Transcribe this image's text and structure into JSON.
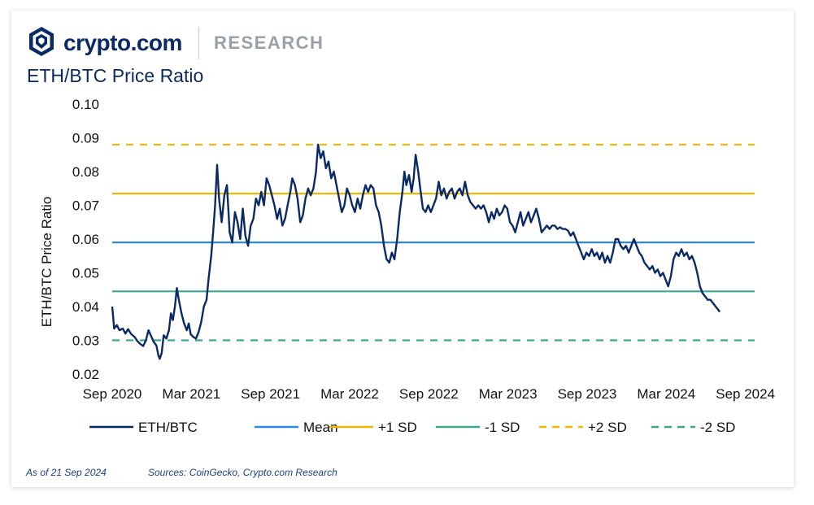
{
  "brand": {
    "name": "crypto.com",
    "section": "RESEARCH",
    "logo": "crypto-com-lion-shield-icon"
  },
  "chart_data": {
    "type": "line",
    "title": "ETH/BTC Price Ratio",
    "ylabel": "ETH/BTC Price Ratio",
    "xlabel": "",
    "ylim": [
      0.02,
      0.1
    ],
    "yticks": [
      "0.02",
      "0.03",
      "0.04",
      "0.05",
      "0.06",
      "0.07",
      "0.08",
      "0.09",
      "0.10"
    ],
    "xlim": [
      0,
      48.7
    ],
    "xticks": [
      {
        "label": "Sep 2020",
        "pos": 0
      },
      {
        "label": "Mar 2021",
        "pos": 6
      },
      {
        "label": "Sep 2021",
        "pos": 12
      },
      {
        "label": "Mar 2022",
        "pos": 18
      },
      {
        "label": "Sep 2022",
        "pos": 24
      },
      {
        "label": "Mar 2023",
        "pos": 30
      },
      {
        "label": "Sep 2023",
        "pos": 36
      },
      {
        "label": "Mar 2024",
        "pos": 42
      },
      {
        "label": "Sep 2024",
        "pos": 48
      }
    ],
    "grid": false,
    "legend_position": "bottom",
    "series": [
      {
        "name": "ETH/BTC",
        "color": "#0a2a66",
        "style": "solid",
        "points": [
          [
            0,
            0.04
          ],
          [
            0.15,
            0.0335
          ],
          [
            0.35,
            0.0345
          ],
          [
            0.55,
            0.033
          ],
          [
            0.8,
            0.0335
          ],
          [
            1.0,
            0.032
          ],
          [
            1.2,
            0.0333
          ],
          [
            1.45,
            0.0318
          ],
          [
            1.7,
            0.031
          ],
          [
            1.9,
            0.0298
          ],
          [
            2.1,
            0.029
          ],
          [
            2.35,
            0.0283
          ],
          [
            2.55,
            0.03
          ],
          [
            2.75,
            0.033
          ],
          [
            2.95,
            0.0312
          ],
          [
            3.15,
            0.0295
          ],
          [
            3.35,
            0.0285
          ],
          [
            3.5,
            0.0255
          ],
          [
            3.6,
            0.0245
          ],
          [
            3.75,
            0.0262
          ],
          [
            3.9,
            0.0315
          ],
          [
            4.1,
            0.0305
          ],
          [
            4.3,
            0.033
          ],
          [
            4.45,
            0.038
          ],
          [
            4.6,
            0.036
          ],
          [
            4.75,
            0.04
          ],
          [
            4.9,
            0.0455
          ],
          [
            5.05,
            0.042
          ],
          [
            5.25,
            0.038
          ],
          [
            5.45,
            0.035
          ],
          [
            5.65,
            0.033
          ],
          [
            5.8,
            0.035
          ],
          [
            5.95,
            0.0318
          ],
          [
            6.15,
            0.031
          ],
          [
            6.35,
            0.0305
          ],
          [
            6.55,
            0.0325
          ],
          [
            6.75,
            0.0355
          ],
          [
            6.95,
            0.04
          ],
          [
            7.15,
            0.042
          ],
          [
            7.3,
            0.048
          ],
          [
            7.5,
            0.055
          ],
          [
            7.65,
            0.062
          ],
          [
            7.8,
            0.07
          ],
          [
            7.95,
            0.082
          ],
          [
            8.1,
            0.072
          ],
          [
            8.3,
            0.065
          ],
          [
            8.5,
            0.073
          ],
          [
            8.7,
            0.076
          ],
          [
            8.9,
            0.062
          ],
          [
            9.1,
            0.059
          ],
          [
            9.3,
            0.068
          ],
          [
            9.5,
            0.065
          ],
          [
            9.7,
            0.06
          ],
          [
            9.9,
            0.069
          ],
          [
            10.1,
            0.061
          ],
          [
            10.3,
            0.058
          ],
          [
            10.5,
            0.064
          ],
          [
            10.7,
            0.066
          ],
          [
            10.9,
            0.072
          ],
          [
            11.1,
            0.07
          ],
          [
            11.3,
            0.074
          ],
          [
            11.5,
            0.07
          ],
          [
            11.7,
            0.078
          ],
          [
            11.9,
            0.076
          ],
          [
            12.1,
            0.073
          ],
          [
            12.3,
            0.07
          ],
          [
            12.5,
            0.066
          ],
          [
            12.7,
            0.069
          ],
          [
            12.9,
            0.064
          ],
          [
            13.1,
            0.066
          ],
          [
            13.3,
            0.07
          ],
          [
            13.5,
            0.074
          ],
          [
            13.65,
            0.078
          ],
          [
            13.85,
            0.076
          ],
          [
            14.05,
            0.072
          ],
          [
            14.25,
            0.065
          ],
          [
            14.45,
            0.067
          ],
          [
            14.65,
            0.072
          ],
          [
            14.85,
            0.075
          ],
          [
            15.05,
            0.073
          ],
          [
            15.25,
            0.075
          ],
          [
            15.45,
            0.08
          ],
          [
            15.6,
            0.088
          ],
          [
            15.8,
            0.084
          ],
          [
            16.0,
            0.086
          ],
          [
            16.2,
            0.081
          ],
          [
            16.4,
            0.083
          ],
          [
            16.6,
            0.078
          ],
          [
            16.8,
            0.08
          ],
          [
            17.0,
            0.076
          ],
          [
            17.2,
            0.072
          ],
          [
            17.4,
            0.068
          ],
          [
            17.6,
            0.07
          ],
          [
            17.8,
            0.075
          ],
          [
            18.0,
            0.073
          ],
          [
            18.2,
            0.07
          ],
          [
            18.4,
            0.068
          ],
          [
            18.6,
            0.072
          ],
          [
            18.8,
            0.069
          ],
          [
            19.0,
            0.073
          ],
          [
            19.2,
            0.076
          ],
          [
            19.4,
            0.074
          ],
          [
            19.6,
            0.076
          ],
          [
            19.8,
            0.075
          ],
          [
            20.0,
            0.07
          ],
          [
            20.2,
            0.068
          ],
          [
            20.4,
            0.064
          ],
          [
            20.6,
            0.058
          ],
          [
            20.8,
            0.054
          ],
          [
            21.0,
            0.053
          ],
          [
            21.2,
            0.056
          ],
          [
            21.4,
            0.054
          ],
          [
            21.6,
            0.06
          ],
          [
            21.8,
            0.068
          ],
          [
            22.0,
            0.074
          ],
          [
            22.15,
            0.08
          ],
          [
            22.3,
            0.076
          ],
          [
            22.5,
            0.079
          ],
          [
            22.7,
            0.074
          ],
          [
            22.85,
            0.078
          ],
          [
            23.0,
            0.085
          ],
          [
            23.2,
            0.08
          ],
          [
            23.35,
            0.075
          ],
          [
            23.55,
            0.069
          ],
          [
            23.75,
            0.068
          ],
          [
            23.95,
            0.07
          ],
          [
            24.15,
            0.068
          ],
          [
            24.35,
            0.07
          ],
          [
            24.55,
            0.072
          ],
          [
            24.75,
            0.077
          ],
          [
            24.95,
            0.073
          ],
          [
            25.15,
            0.075
          ],
          [
            25.35,
            0.072
          ],
          [
            25.55,
            0.074
          ],
          [
            25.75,
            0.075
          ],
          [
            25.95,
            0.072
          ],
          [
            26.15,
            0.074
          ],
          [
            26.35,
            0.075
          ],
          [
            26.55,
            0.073
          ],
          [
            26.75,
            0.077
          ],
          [
            26.95,
            0.073
          ],
          [
            27.15,
            0.071
          ],
          [
            27.35,
            0.07
          ],
          [
            27.55,
            0.069
          ],
          [
            27.75,
            0.07
          ],
          [
            27.95,
            0.069
          ],
          [
            28.15,
            0.07
          ],
          [
            28.35,
            0.068
          ],
          [
            28.55,
            0.065
          ],
          [
            28.75,
            0.068
          ],
          [
            28.95,
            0.066
          ],
          [
            29.15,
            0.069
          ],
          [
            29.35,
            0.067
          ],
          [
            29.55,
            0.068
          ],
          [
            29.75,
            0.07
          ],
          [
            29.95,
            0.069
          ],
          [
            30.15,
            0.065
          ],
          [
            30.35,
            0.064
          ],
          [
            30.55,
            0.062
          ],
          [
            30.75,
            0.065
          ],
          [
            30.95,
            0.068
          ],
          [
            31.15,
            0.064
          ],
          [
            31.35,
            0.066
          ],
          [
            31.55,
            0.068
          ],
          [
            31.75,
            0.065
          ],
          [
            31.95,
            0.067
          ],
          [
            32.15,
            0.069
          ],
          [
            32.35,
            0.066
          ],
          [
            32.55,
            0.062
          ],
          [
            32.75,
            0.063
          ],
          [
            32.95,
            0.064
          ],
          [
            33.15,
            0.063
          ],
          [
            33.35,
            0.064
          ],
          [
            33.55,
            0.064
          ],
          [
            33.75,
            0.063
          ],
          [
            33.95,
            0.0635
          ],
          [
            34.15,
            0.063
          ],
          [
            34.35,
            0.063
          ],
          [
            34.55,
            0.0625
          ],
          [
            34.75,
            0.061
          ],
          [
            34.95,
            0.062
          ],
          [
            35.15,
            0.06
          ],
          [
            35.35,
            0.058
          ],
          [
            35.55,
            0.056
          ],
          [
            35.75,
            0.054
          ],
          [
            35.95,
            0.056
          ],
          [
            36.15,
            0.055
          ],
          [
            36.35,
            0.057
          ],
          [
            36.55,
            0.055
          ],
          [
            36.75,
            0.056
          ],
          [
            36.95,
            0.054
          ],
          [
            37.15,
            0.056
          ],
          [
            37.35,
            0.053
          ],
          [
            37.55,
            0.055
          ],
          [
            37.75,
            0.053
          ],
          [
            37.95,
            0.056
          ],
          [
            38.15,
            0.06
          ],
          [
            38.35,
            0.06
          ],
          [
            38.55,
            0.058
          ],
          [
            38.75,
            0.057
          ],
          [
            38.95,
            0.058
          ],
          [
            39.15,
            0.056
          ],
          [
            39.35,
            0.058
          ],
          [
            39.55,
            0.06
          ],
          [
            39.75,
            0.058
          ],
          [
            39.95,
            0.056
          ],
          [
            40.15,
            0.055
          ],
          [
            40.35,
            0.053
          ],
          [
            40.55,
            0.052
          ],
          [
            40.75,
            0.051
          ],
          [
            40.95,
            0.052
          ],
          [
            41.15,
            0.05
          ],
          [
            41.35,
            0.051
          ],
          [
            41.55,
            0.049
          ],
          [
            41.75,
            0.05
          ],
          [
            41.95,
            0.048
          ],
          [
            42.15,
            0.046
          ],
          [
            42.35,
            0.049
          ],
          [
            42.55,
            0.054
          ],
          [
            42.75,
            0.056
          ],
          [
            42.95,
            0.055
          ],
          [
            43.15,
            0.057
          ],
          [
            43.35,
            0.055
          ],
          [
            43.55,
            0.056
          ],
          [
            43.75,
            0.054
          ],
          [
            43.95,
            0.055
          ],
          [
            44.15,
            0.053
          ],
          [
            44.35,
            0.05
          ],
          [
            44.55,
            0.046
          ],
          [
            44.75,
            0.044
          ],
          [
            44.95,
            0.043
          ],
          [
            45.15,
            0.042
          ],
          [
            45.35,
            0.042
          ],
          [
            45.55,
            0.041
          ],
          [
            45.75,
            0.04
          ],
          [
            45.95,
            0.039
          ],
          [
            46.05,
            0.0384
          ]
        ]
      },
      {
        "name": "Mean",
        "color": "#2a8ae6",
        "style": "solid",
        "value": 0.059
      },
      {
        "name": "+1 SD",
        "color": "#f2b705",
        "style": "solid",
        "value": 0.0735
      },
      {
        "name": "-1 SD",
        "color": "#3aaa8c",
        "style": "solid",
        "value": 0.0445
      },
      {
        "name": "+2 SD",
        "color": "#f2b705",
        "style": "dashed",
        "value": 0.088
      },
      {
        "name": "-2 SD",
        "color": "#3aaa8c",
        "style": "dashed",
        "value": 0.03
      }
    ]
  },
  "footer": {
    "as_of": "As of 21 Sep 2024",
    "sources": "Sources: CoinGecko, Crypto.com Research"
  }
}
